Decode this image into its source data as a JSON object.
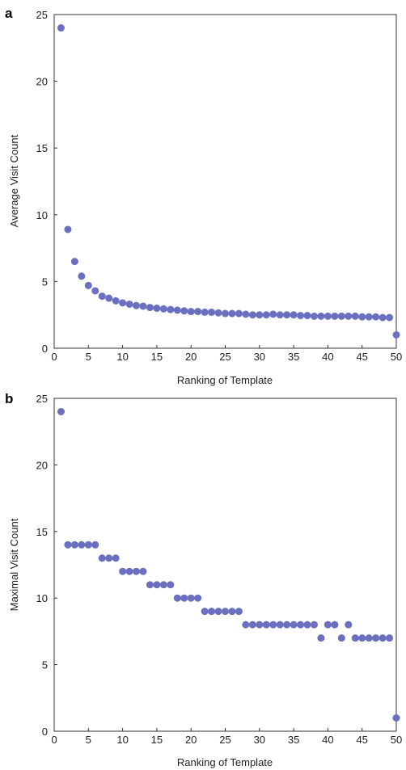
{
  "colors": {
    "marker": "#6b6fbf",
    "axis": "#333333"
  },
  "chart_data": [
    {
      "type": "scatter",
      "panel_label": "a",
      "xlabel": "Ranking of Template",
      "ylabel": "Average Visit Count",
      "xlim": [
        0,
        50
      ],
      "ylim": [
        0,
        25
      ],
      "xticks": [
        0,
        5,
        10,
        15,
        20,
        25,
        30,
        35,
        40,
        45,
        50
      ],
      "yticks": [
        0,
        5,
        10,
        15,
        20,
        25
      ],
      "grid": false,
      "x": [
        1,
        2,
        3,
        4,
        5,
        6,
        7,
        8,
        9,
        10,
        11,
        12,
        13,
        14,
        15,
        16,
        17,
        18,
        19,
        20,
        21,
        22,
        23,
        24,
        25,
        26,
        27,
        28,
        29,
        30,
        31,
        32,
        33,
        34,
        35,
        36,
        37,
        38,
        39,
        40,
        41,
        42,
        43,
        44,
        45,
        46,
        47,
        48,
        49,
        50
      ],
      "y": [
        24.0,
        8.9,
        6.5,
        5.4,
        4.7,
        4.3,
        3.9,
        3.75,
        3.55,
        3.4,
        3.3,
        3.2,
        3.15,
        3.05,
        3.0,
        2.95,
        2.9,
        2.85,
        2.8,
        2.75,
        2.75,
        2.7,
        2.7,
        2.65,
        2.6,
        2.6,
        2.6,
        2.55,
        2.5,
        2.5,
        2.5,
        2.55,
        2.5,
        2.5,
        2.5,
        2.45,
        2.45,
        2.4,
        2.4,
        2.4,
        2.4,
        2.4,
        2.4,
        2.4,
        2.35,
        2.35,
        2.35,
        2.3,
        2.3,
        1.0
      ]
    },
    {
      "type": "scatter",
      "panel_label": "b",
      "xlabel": "Ranking of Template",
      "ylabel": "Maximal Visit Count",
      "xlim": [
        0,
        50
      ],
      "ylim": [
        0,
        25
      ],
      "xticks": [
        0,
        5,
        10,
        15,
        20,
        25,
        30,
        35,
        40,
        45,
        50
      ],
      "yticks": [
        0,
        5,
        10,
        15,
        20,
        25
      ],
      "grid": false,
      "x": [
        1,
        2,
        3,
        4,
        5,
        6,
        7,
        8,
        9,
        10,
        11,
        12,
        13,
        14,
        15,
        16,
        17,
        18,
        19,
        20,
        21,
        22,
        23,
        24,
        25,
        26,
        27,
        28,
        29,
        30,
        31,
        32,
        33,
        34,
        35,
        36,
        37,
        38,
        39,
        40,
        41,
        42,
        43,
        44,
        45,
        46,
        47,
        48,
        49,
        50
      ],
      "y": [
        24,
        14,
        14,
        14,
        14,
        14,
        13,
        13,
        13,
        12,
        12,
        12,
        12,
        11,
        11,
        11,
        11,
        10,
        10,
        10,
        10,
        9,
        9,
        9,
        9,
        9,
        9,
        8,
        8,
        8,
        8,
        8,
        8,
        8,
        8,
        8,
        8,
        8,
        7,
        8,
        8,
        7,
        8,
        7,
        7,
        7,
        7,
        7,
        7,
        1
      ]
    }
  ]
}
